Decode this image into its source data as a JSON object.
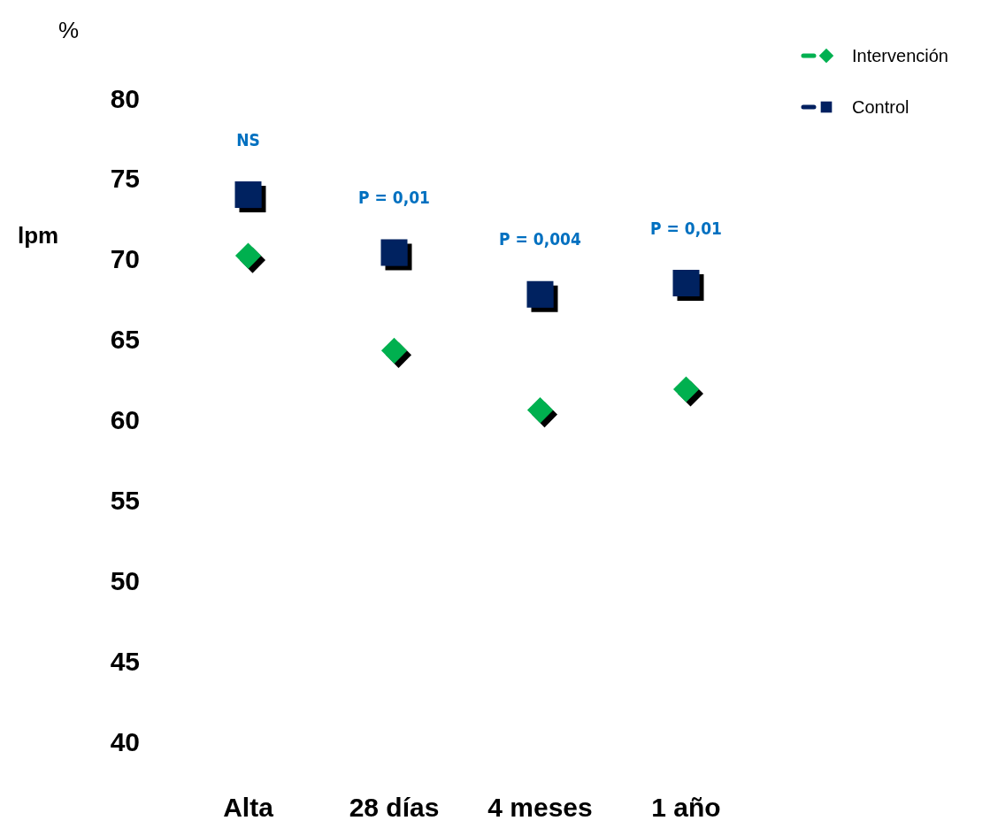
{
  "chart_data": {
    "type": "scatter",
    "ylabel": "lpm",
    "categories": [
      "Alta",
      "28 días",
      "4 meses",
      "1 año"
    ],
    "series": [
      {
        "name": "Intervención",
        "color": "#00b050",
        "marker": "diamond",
        "values": [
          70.2,
          64.3,
          60.6,
          61.9
        ]
      },
      {
        "name": "Control",
        "color": "#002060",
        "marker": "square",
        "values": [
          74,
          70.4,
          67.8,
          68.5
        ]
      }
    ],
    "ylim": [
      40,
      80
    ],
    "yticks": [
      40,
      45,
      50,
      55,
      60,
      65,
      70,
      75,
      80
    ],
    "grid": false,
    "legend": "top right",
    "annotations": [
      "%",
      "NS",
      "P = 0,01",
      "P = 0,004",
      "P = 0,01"
    ]
  }
}
